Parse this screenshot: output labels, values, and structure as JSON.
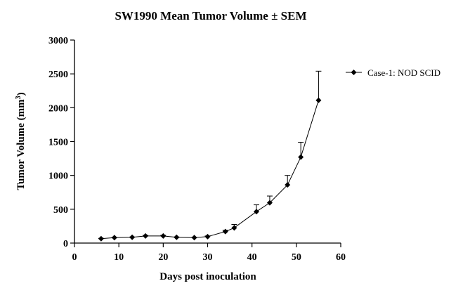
{
  "chart_data": {
    "type": "line",
    "title": "SW1990 Mean Tumor Volume ± SEM",
    "xlabel": "Days post inoculation",
    "ylabel": "Tumor Volume (mm",
    "ylabel_sup": "3",
    "ylabel_close": ")",
    "xlim": [
      0,
      60
    ],
    "ylim": [
      0,
      3000
    ],
    "xticks": [
      "0",
      "10",
      "20",
      "30",
      "40",
      "50",
      "60"
    ],
    "yticks": [
      "0",
      "500",
      "1000",
      "1500",
      "2000",
      "2500",
      "3000"
    ],
    "grid": false,
    "legend_position": "top-right",
    "series": [
      {
        "name": "Case-1: NOD SCID",
        "marker": "diamond",
        "color": "#000000",
        "x": [
          6,
          9,
          13,
          16,
          20,
          23,
          27,
          30,
          34,
          36,
          41,
          44,
          48,
          51,
          55
        ],
        "y": [
          65,
          80,
          85,
          105,
          105,
          85,
          80,
          95,
          170,
          225,
          465,
          595,
          860,
          1270,
          2110
        ],
        "sem": [
          5,
          5,
          5,
          10,
          10,
          5,
          5,
          10,
          20,
          50,
          100,
          100,
          140,
          220,
          430
        ]
      }
    ]
  }
}
